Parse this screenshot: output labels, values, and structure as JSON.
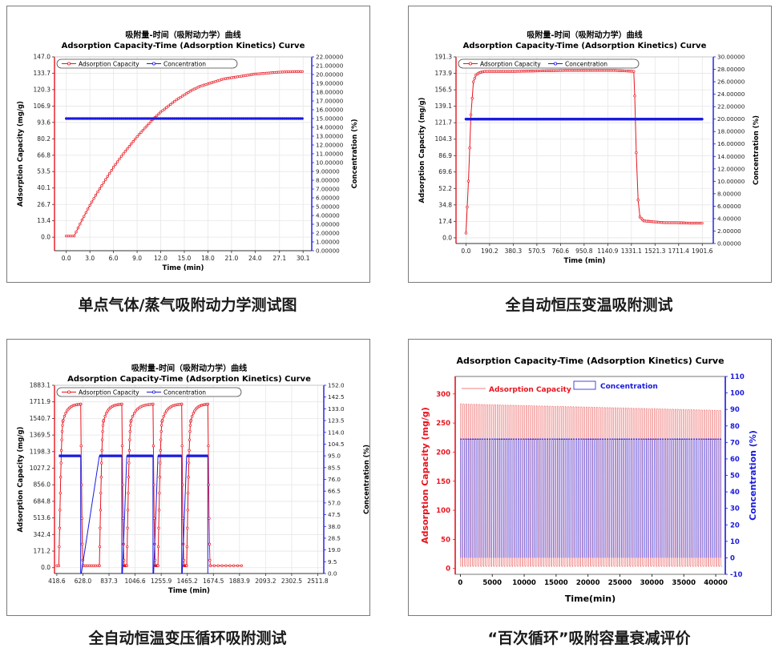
{
  "captions": [
    "单点气体/蒸气吸附动力学测试图",
    "全自动恒压变温吸附测试",
    "全自动恒温变压循环吸附测试",
    "“百次循环”吸附容量衰减评价"
  ],
  "colors": {
    "red": "#e8141e",
    "blue": "#1a1ae0",
    "grid": "#e6e6e6",
    "axis": "#333333"
  },
  "chart_data": [
    {
      "type": "line",
      "title_cn": "吸附量-时间（吸附动力学）曲线",
      "title": "Adsorption Capacity-Time (Adsorption Kinetics) Curve",
      "xlabel": "Time (min)",
      "ylabel": "Adsorption Capacity (mg/g)",
      "y2label": "Concentration (%)",
      "legend": [
        "Adsorption Capacity",
        "Concentration"
      ],
      "xlim": [
        -1.5,
        31.2
      ],
      "ylim": [
        -11,
        147
      ],
      "y2lim": [
        0,
        22
      ],
      "xticks": [
        "0.0",
        "3.0",
        "6.0",
        "9.0",
        "12.0",
        "15.0",
        "18.0",
        "21.0",
        "24.0",
        "27.1",
        "30.1"
      ],
      "xtick_values": [
        0,
        3,
        6,
        9,
        12,
        15,
        18,
        21,
        24,
        27.1,
        30.1
      ],
      "yticks": [
        "0.0",
        "13.4",
        "26.7",
        "40.1",
        "53.5",
        "66.8",
        "80.2",
        "93.6",
        "106.9",
        "120.3",
        "133.7",
        "147.0"
      ],
      "ytick_values": [
        0,
        13.4,
        26.7,
        40.1,
        53.5,
        66.8,
        80.2,
        93.6,
        106.9,
        120.3,
        133.7,
        147.0
      ],
      "y2ticks": [
        "0.00000",
        "1.00000",
        "2.00000",
        "3.00000",
        "4.00000",
        "5.00000",
        "6.00000",
        "7.00000",
        "8.00000",
        "9.00000",
        "10.00000",
        "11.00000",
        "12.00000",
        "13.00000",
        "14.00000",
        "15.00000",
        "16.00000",
        "17.00000",
        "18.00000",
        "19.00000",
        "20.00000",
        "21.00000",
        "22.00000"
      ],
      "series": [
        {
          "name": "Adsorption Capacity",
          "axis": "y",
          "x": [
            0,
            1,
            2,
            3,
            4,
            5,
            6,
            7,
            8,
            9,
            10,
            11,
            12,
            13,
            14,
            15,
            16,
            17,
            18,
            19,
            20,
            21,
            22,
            23,
            24,
            25,
            26,
            27,
            28,
            29,
            30
          ],
          "values": [
            1,
            1,
            14,
            26,
            37,
            47,
            57,
            66,
            74,
            82,
            89,
            96,
            102,
            107,
            112,
            116,
            120,
            123,
            125,
            127,
            129,
            130,
            131,
            132,
            133,
            133.5,
            134,
            134.5,
            134.8,
            135,
            135
          ]
        },
        {
          "name": "Concentration",
          "axis": "y2",
          "x": [
            0,
            30
          ],
          "values": [
            15,
            15
          ]
        }
      ]
    },
    {
      "type": "line",
      "title_cn": "吸附量-时间（吸附动力学）曲线",
      "title": "Adsorption Capacity-Time (Adsorption Kinetics) Curve",
      "xlabel": "Time (min)",
      "ylabel": "Adsorption Capacity (mg/g)",
      "y2label": "Concentration (%)",
      "legend": [
        "Adsorption Capacity",
        "Concentration"
      ],
      "xlim": [
        -80,
        1990
      ],
      "ylim": [
        -6,
        191.3
      ],
      "y2lim": [
        0,
        30
      ],
      "xticks": [
        "0.0",
        "190.2",
        "380.3",
        "570.5",
        "760.6",
        "950.8",
        "1140.9",
        "1331.1",
        "1521.3",
        "1711.4",
        "1901.6"
      ],
      "xtick_values": [
        0,
        190.2,
        380.3,
        570.5,
        760.6,
        950.8,
        1140.9,
        1331.1,
        1521.3,
        1711.4,
        1901.6
      ],
      "yticks": [
        "0.0",
        "17.4",
        "34.8",
        "52.2",
        "69.6",
        "86.9",
        "104.3",
        "121.7",
        "139.1",
        "156.5",
        "173.9",
        "191.3"
      ],
      "ytick_values": [
        0,
        17.4,
        34.8,
        52.2,
        69.6,
        86.9,
        104.3,
        121.7,
        139.1,
        156.5,
        173.9,
        191.3
      ],
      "y2ticks": [
        "0.00000",
        "2.00000",
        "4.00000",
        "6.00000",
        "8.00000",
        "10.00000",
        "12.00000",
        "14.00000",
        "16.00000",
        "18.00000",
        "20.00000",
        "22.00000",
        "24.00000",
        "26.00000",
        "28.00000",
        "30.00000"
      ],
      "series": [
        {
          "name": "Adsorption Capacity",
          "axis": "y",
          "x": [
            0,
            20,
            40,
            60,
            80,
            100,
            120,
            150,
            200,
            400,
            600,
            800,
            1000,
            1200,
            1350,
            1358,
            1370,
            1385,
            1400,
            1430,
            1500,
            1600,
            1700,
            1800,
            1900
          ],
          "values": [
            5,
            60,
            130,
            165,
            172,
            174,
            175,
            176,
            176,
            176,
            176.5,
            177,
            177,
            177,
            176,
            150,
            90,
            40,
            22,
            18,
            17,
            16,
            16,
            15.5,
            15.5
          ]
        },
        {
          "name": "Concentration",
          "axis": "y2",
          "x": [
            0,
            1900
          ],
          "values": [
            20,
            20
          ]
        }
      ]
    },
    {
      "type": "line",
      "title_cn": "吸附量-时间（吸附动力学）曲线",
      "title": "Adsorption Capacity-Time (Adsorption Kinetics) Curve",
      "xlabel": "Time (min)",
      "ylabel": "Adsorption Capacity (mg/g)",
      "y2label": "Concentration (%)",
      "legend": [
        "Adsorption Capacity",
        "Concentration"
      ],
      "xlim": [
        400,
        2560
      ],
      "ylim": [
        -60,
        1883.1
      ],
      "y2lim": [
        0,
        152
      ],
      "xticks": [
        "418.6",
        "628.0",
        "837.3",
        "1046.6",
        "1255.9",
        "1465.2",
        "1674.5",
        "1883.9",
        "2093.2",
        "2302.5",
        "2511.8"
      ],
      "xtick_values": [
        418.6,
        628.0,
        837.3,
        1046.6,
        1255.9,
        1465.2,
        1674.5,
        1883.9,
        2093.2,
        2302.5,
        2511.8
      ],
      "yticks": [
        "0.0",
        "171.2",
        "342.4",
        "513.6",
        "684.8",
        "856.0",
        "1027.2",
        "1198.3",
        "1369.5",
        "1540.7",
        "1711.9",
        "1883.1"
      ],
      "ytick_values": [
        0,
        171.2,
        342.4,
        513.6,
        684.8,
        856.0,
        1027.2,
        1198.3,
        1369.5,
        1540.7,
        1711.9,
        1883.1
      ],
      "y2ticks": [
        "0.0",
        "9.5",
        "19.0",
        "28.5",
        "38.0",
        "47.5",
        "57.0",
        "66.5",
        "76.0",
        "85.5",
        "95.0",
        "104.5",
        "114.0",
        "123.5",
        "133.0",
        "142.5",
        "152.0"
      ],
      "cycles": [
        {
          "start": 435,
          "end": 610
        },
        {
          "start": 760,
          "end": 940
        },
        {
          "start": 980,
          "end": 1190
        },
        {
          "start": 1230,
          "end": 1420
        },
        {
          "start": 1460,
          "end": 1630
        }
      ],
      "cycle_peak": 1690,
      "cycle_baseline": 20,
      "concentration_high": 95,
      "concentration_low": 0
    },
    {
      "type": "line",
      "title": "Adsorption Capacity-Time (Adsorption Kinetics) Curve",
      "xlabel": "Time(min)",
      "ylabel": "Adsorption Capacity (mg/g)",
      "y2label": "Concentration (%)",
      "legend": [
        "Adsorption Capacity",
        "Concentration"
      ],
      "xlim": [
        -800,
        41500
      ],
      "ylim": [
        -10,
        330
      ],
      "y2lim": [
        -10,
        110
      ],
      "xticks": [
        "0",
        "5000",
        "10000",
        "15000",
        "20000",
        "25000",
        "30000",
        "35000",
        "40000"
      ],
      "xtick_values": [
        0,
        5000,
        10000,
        15000,
        20000,
        25000,
        30000,
        35000,
        40000
      ],
      "yticks": [
        "0",
        "50",
        "100",
        "150",
        "200",
        "250",
        "300"
      ],
      "ytick_values": [
        0,
        50,
        100,
        150,
        200,
        250,
        300
      ],
      "y2ticks": [
        "-10",
        "0",
        "10",
        "20",
        "30",
        "40",
        "50",
        "60",
        "70",
        "80",
        "90",
        "100",
        "110"
      ],
      "y2tick_values": [
        -10,
        0,
        10,
        20,
        30,
        40,
        50,
        60,
        70,
        80,
        90,
        100,
        110
      ],
      "cycle_count": 100,
      "capacity_peak_start": 283,
      "capacity_peak_end": 272,
      "capacity_low": 3,
      "concentration_high": 72,
      "concentration_low": 0
    }
  ]
}
